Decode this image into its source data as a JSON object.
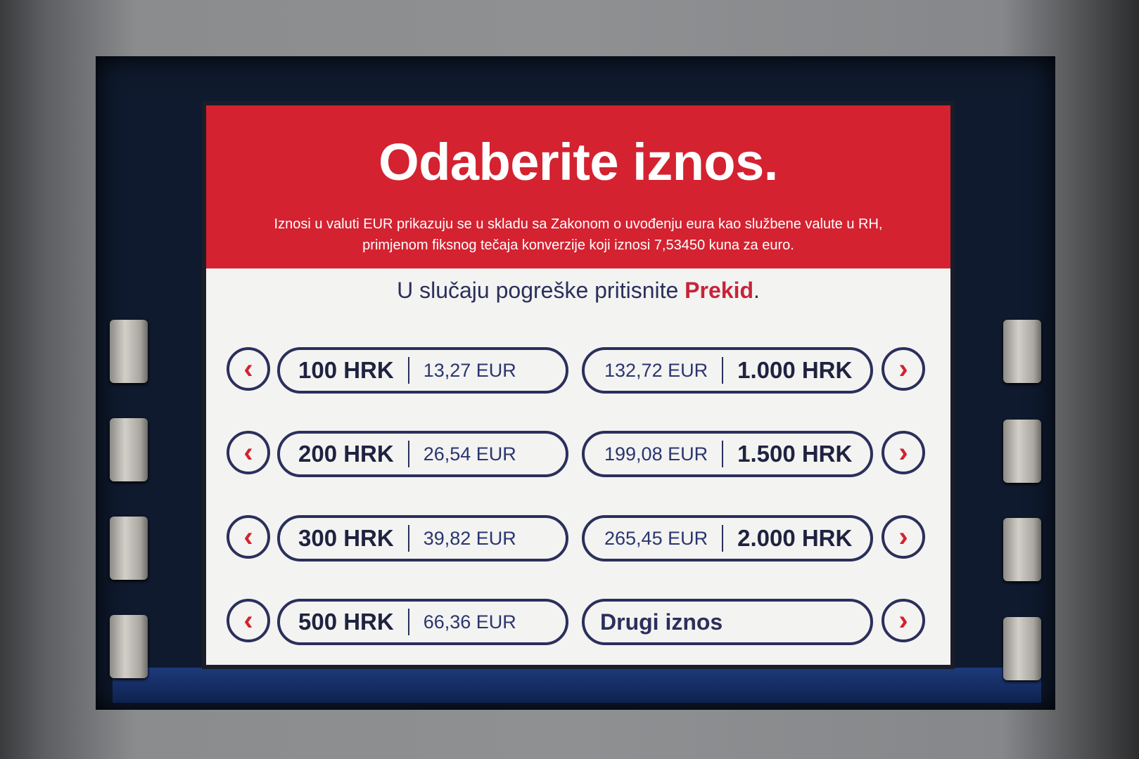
{
  "header": {
    "title": "Odaberite iznos.",
    "notice_line1": "Iznosi u valuti EUR prikazuju se u skladu sa Zakonom o uvođenju eura kao službene valute u RH,",
    "notice_line2": "primjenom fiksnog tečaja konverzije koji iznosi 7,53450 kuna za euro."
  },
  "prompt": {
    "text": "U slučaju pogreške pritisnite ",
    "highlight": "Prekid",
    "end": "."
  },
  "left_options": [
    {
      "hrk": "100 HRK",
      "eur": "13,27 EUR"
    },
    {
      "hrk": "200 HRK",
      "eur": "26,54 EUR"
    },
    {
      "hrk": "300 HRK",
      "eur": "39,82 EUR"
    },
    {
      "hrk": "500 HRK",
      "eur": "66,36 EUR"
    }
  ],
  "right_options": [
    {
      "eur": "132,72 EUR",
      "hrk": "1.000 HRK"
    },
    {
      "eur": "199,08 EUR",
      "hrk": "1.500 HRK"
    },
    {
      "eur": "265,45 EUR",
      "hrk": "2.000 HRK"
    }
  ],
  "other_amount": "Drugi iznos",
  "icons": {
    "left": "chevron-left-icon",
    "right": "chevron-right-icon"
  },
  "colors": {
    "header_red": "#d42230",
    "navy": "#2b2f5c",
    "accent_red": "#c8233a"
  }
}
